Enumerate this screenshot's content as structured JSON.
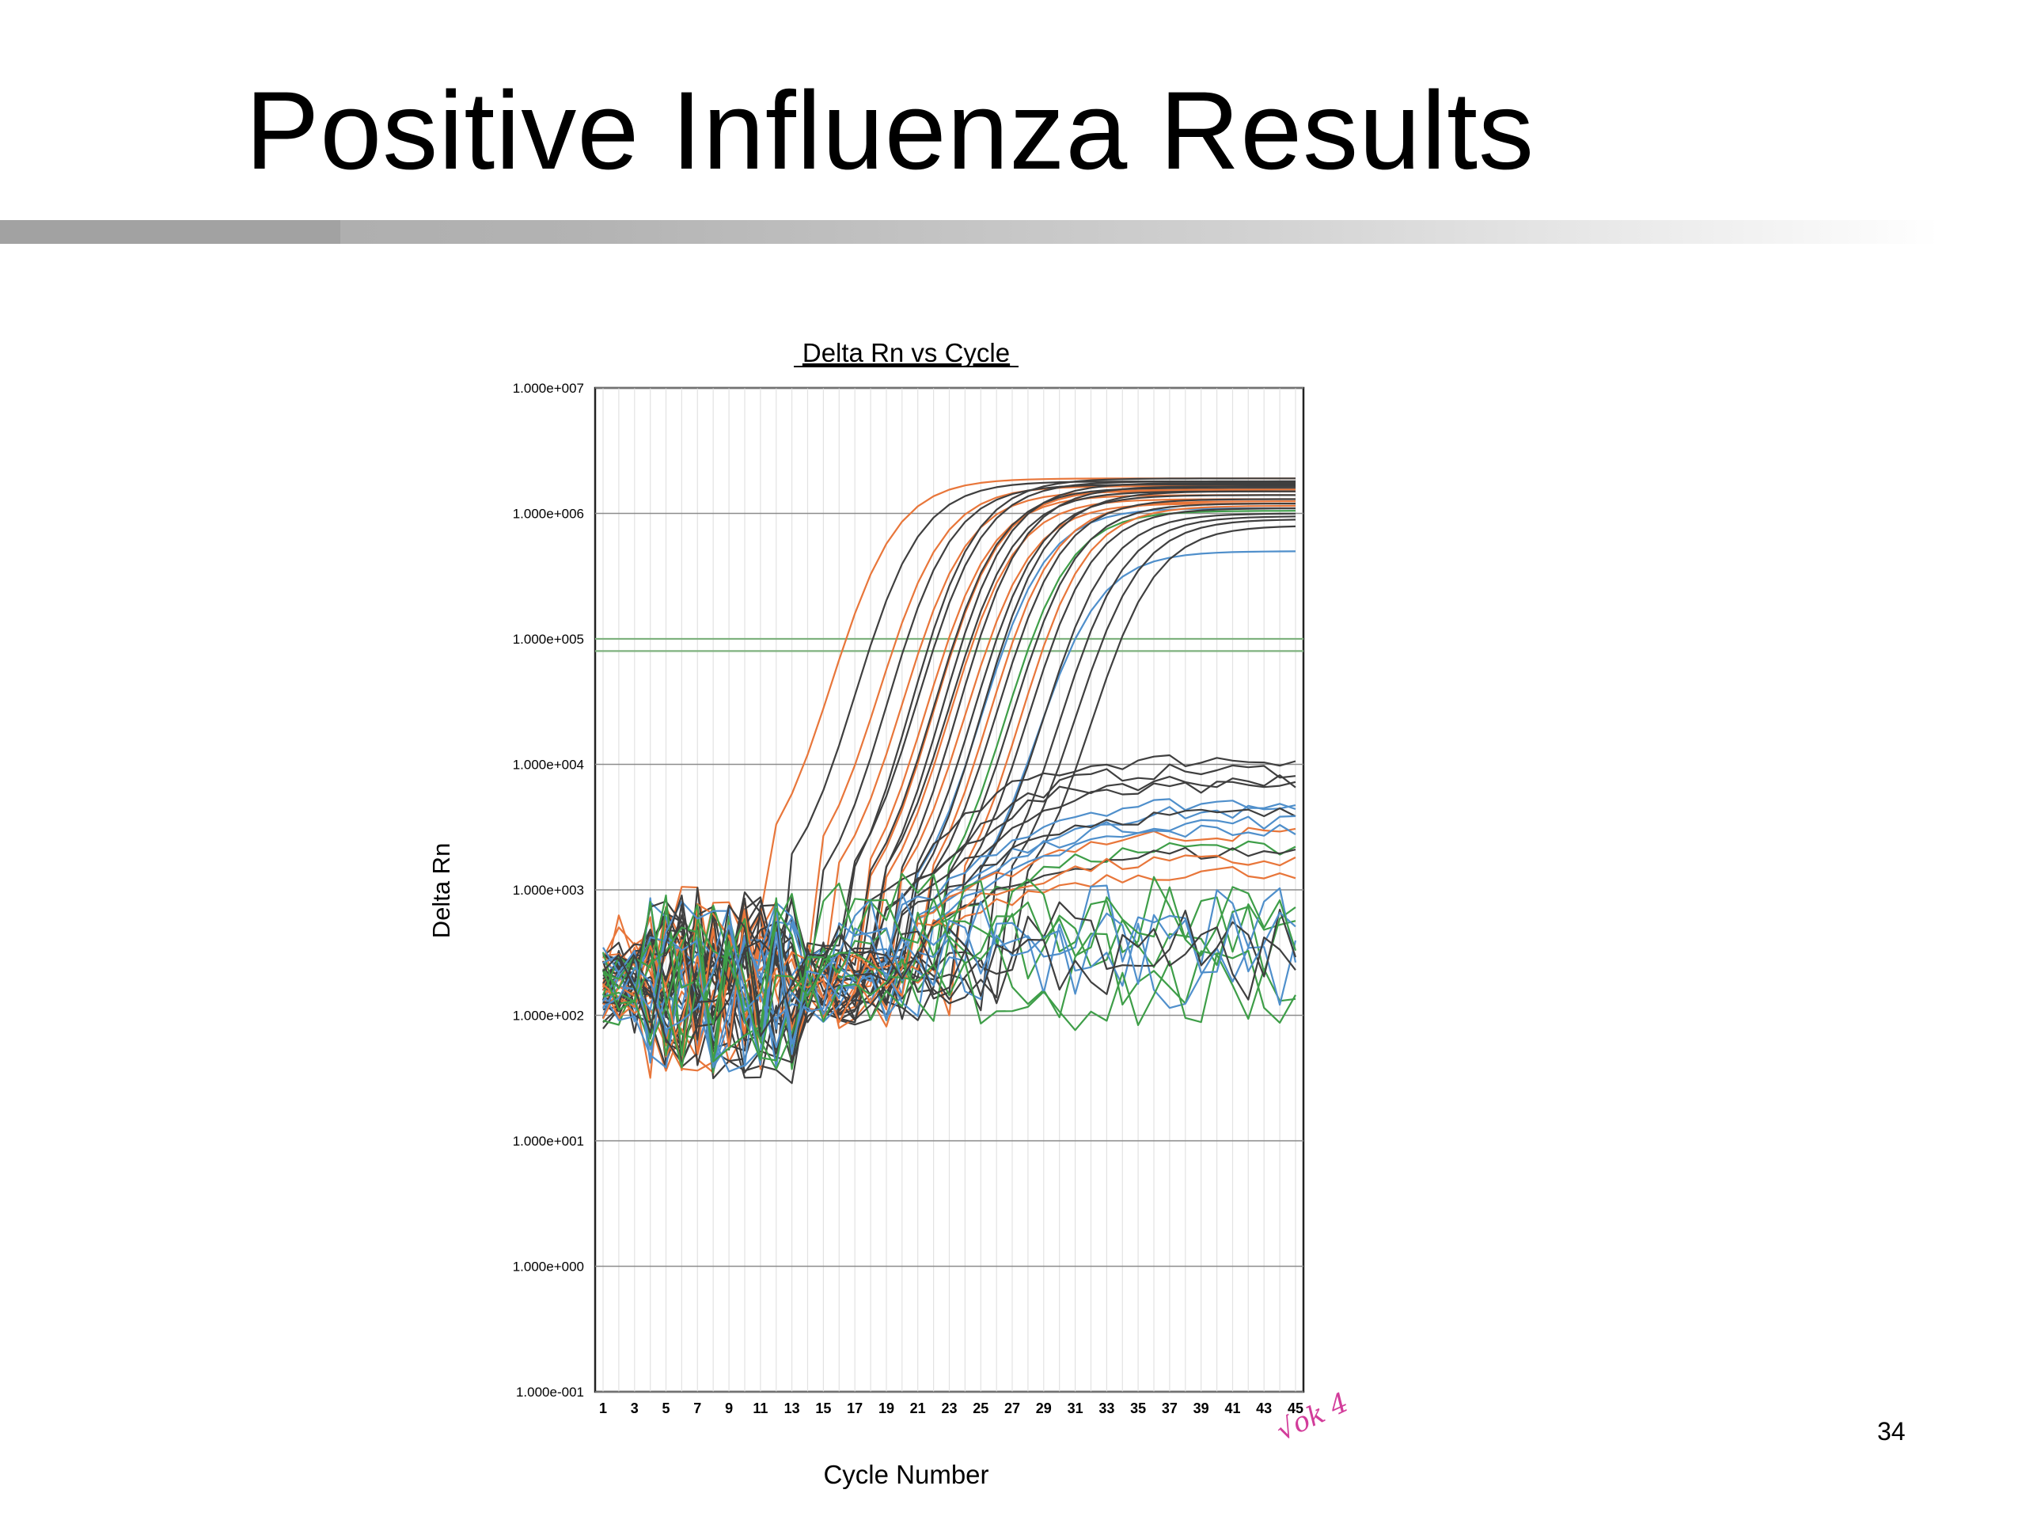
{
  "slide": {
    "title": "Positive Influenza Results",
    "page_number": "34",
    "handwriting": "√ok 4"
  },
  "chart_data": {
    "type": "line",
    "title": "Delta Rn vs Cycle",
    "xlabel": "Cycle Number",
    "ylabel": "Delta Rn",
    "y_scale": "log",
    "ylim": [
      0.1,
      10000000
    ],
    "xlim": [
      1,
      45
    ],
    "x_ticks": [
      1,
      3,
      5,
      7,
      9,
      11,
      13,
      15,
      17,
      19,
      21,
      23,
      25,
      27,
      29,
      31,
      33,
      35,
      37,
      39,
      41,
      43,
      45
    ],
    "y_ticks": [
      {
        "value": 10000000,
        "label": "1.000e+007"
      },
      {
        "value": 1000000,
        "label": "1.000e+006"
      },
      {
        "value": 100000,
        "label": "1.000e+005"
      },
      {
        "value": 10000,
        "label": "1.000e+004"
      },
      {
        "value": 1000,
        "label": "1.000e+003"
      },
      {
        "value": 100,
        "label": "1.000e+002"
      },
      {
        "value": 10,
        "label": "1.000e+001"
      },
      {
        "value": 1,
        "label": "1.000e+000"
      },
      {
        "value": 0.1,
        "label": "1.000e-001"
      }
    ],
    "grid": true,
    "legend": "none",
    "threshold_lines": [
      {
        "value": 100000,
        "color": "#7fb27f"
      },
      {
        "value": 80000,
        "color": "#7fb27f"
      }
    ],
    "colors": {
      "orange": "#e8763a",
      "dark": "#3f3f3f",
      "blue": "#4f8fcb",
      "green": "#3e9e48"
    },
    "amplification_curves": [
      {
        "color": "orange",
        "ct": 15.5,
        "plateau": 1900000,
        "baseline": 1000
      },
      {
        "color": "dark",
        "ct": 17.0,
        "plateau": 1800000,
        "baseline": 700
      },
      {
        "color": "orange",
        "ct": 18.5,
        "plateau": 1650000,
        "baseline": 800
      },
      {
        "color": "dark",
        "ct": 19.0,
        "plateau": 1700000,
        "baseline": 500
      },
      {
        "color": "orange",
        "ct": 20.0,
        "plateau": 1500000,
        "baseline": 600
      },
      {
        "color": "dark",
        "ct": 20.5,
        "plateau": 1900000,
        "baseline": 400
      },
      {
        "color": "dark",
        "ct": 21.0,
        "plateau": 1800000,
        "baseline": 600
      },
      {
        "color": "orange",
        "ct": 21.5,
        "plateau": 1400000,
        "baseline": 500
      },
      {
        "color": "orange",
        "ct": 22.0,
        "plateau": 1550000,
        "baseline": 450
      },
      {
        "color": "dark",
        "ct": 22.0,
        "plateau": 1600000,
        "baseline": 500
      },
      {
        "color": "dark",
        "ct": 22.5,
        "plateau": 1750000,
        "baseline": 400
      },
      {
        "color": "orange",
        "ct": 23.0,
        "plateau": 1300000,
        "baseline": 450
      },
      {
        "color": "dark",
        "ct": 23.0,
        "plateau": 1500000,
        "baseline": 550
      },
      {
        "color": "dark",
        "ct": 23.5,
        "plateau": 1650000,
        "baseline": 400
      },
      {
        "color": "orange",
        "ct": 24.0,
        "plateau": 1200000,
        "baseline": 500
      },
      {
        "color": "dark",
        "ct": 24.5,
        "plateau": 1400000,
        "baseline": 450
      },
      {
        "color": "blue",
        "ct": 25.0,
        "plateau": 1100000,
        "baseline": 500
      },
      {
        "color": "dark",
        "ct": 25.0,
        "plateau": 1500000,
        "baseline": 400
      },
      {
        "color": "orange",
        "ct": 25.5,
        "plateau": 1250000,
        "baseline": 450
      },
      {
        "color": "dark",
        "ct": 26.0,
        "plateau": 1300000,
        "baseline": 500
      },
      {
        "color": "green",
        "ct": 26.5,
        "plateau": 1050000,
        "baseline": 450
      },
      {
        "color": "dark",
        "ct": 27.0,
        "plateau": 1200000,
        "baseline": 500
      },
      {
        "color": "orange",
        "ct": 27.5,
        "plateau": 1150000,
        "baseline": 450
      },
      {
        "color": "dark",
        "ct": 28.0,
        "plateau": 1100000,
        "baseline": 500
      },
      {
        "color": "blue",
        "ct": 28.5,
        "plateau": 500000,
        "baseline": 500
      },
      {
        "color": "dark",
        "ct": 29.0,
        "plateau": 1000000,
        "baseline": 550
      },
      {
        "color": "dark",
        "ct": 30.0,
        "plateau": 950000,
        "baseline": 500
      },
      {
        "color": "dark",
        "ct": 31.0,
        "plateau": 900000,
        "baseline": 600
      },
      {
        "color": "dark",
        "ct": 32.0,
        "plateau": 800000,
        "baseline": 550
      }
    ],
    "low_plateau_curves": [
      {
        "color": "dark",
        "level": 11000,
        "rise_start": 22
      },
      {
        "color": "dark",
        "level": 9000,
        "rise_start": 23
      },
      {
        "color": "dark",
        "level": 7500,
        "rise_start": 23
      },
      {
        "color": "dark",
        "level": 6500,
        "rise_start": 24
      },
      {
        "color": "blue",
        "level": 5000,
        "rise_start": 24
      },
      {
        "color": "blue",
        "level": 4200,
        "rise_start": 25
      },
      {
        "color": "dark",
        "level": 4000,
        "rise_start": 24
      },
      {
        "color": "blue",
        "level": 3500,
        "rise_start": 25
      },
      {
        "color": "orange",
        "level": 2800,
        "rise_start": 25
      },
      {
        "color": "blue",
        "level": 3000,
        "rise_start": 26
      },
      {
        "color": "green",
        "level": 2200,
        "rise_start": 26
      },
      {
        "color": "orange",
        "level": 1400,
        "rise_start": 26
      },
      {
        "color": "dark",
        "level": 2000,
        "rise_start": 26
      },
      {
        "color": "orange",
        "level": 1700,
        "rise_start": 25
      }
    ],
    "noise_curves": [
      {
        "color": "green",
        "level": 700
      },
      {
        "color": "green",
        "level": 350
      },
      {
        "color": "green",
        "level": 200
      },
      {
        "color": "blue",
        "level": 500
      },
      {
        "color": "blue",
        "level": 250
      },
      {
        "color": "dark",
        "level": 400
      },
      {
        "color": "green",
        "level": 150
      },
      {
        "color": "blue",
        "level": 300
      },
      {
        "color": "green",
        "level": 500
      },
      {
        "color": "dark",
        "level": 250
      }
    ]
  }
}
